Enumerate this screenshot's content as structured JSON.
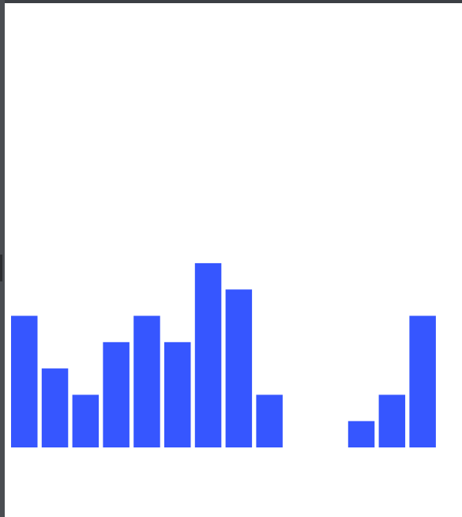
{
  "chart_data": {
    "type": "bar",
    "categories": [
      "",
      "",
      "",
      "",
      "",
      "",
      "",
      "",
      "",
      "",
      "",
      "",
      "",
      ""
    ],
    "values": [
      5,
      3,
      2,
      4,
      5,
      4,
      7,
      6,
      2,
      0,
      0,
      1,
      2,
      5
    ],
    "title": "",
    "xlabel": "",
    "ylabel": "",
    "ylim": [
      0,
      12
    ],
    "grid": false,
    "legend": "none",
    "bar_color": "#3656ff"
  }
}
